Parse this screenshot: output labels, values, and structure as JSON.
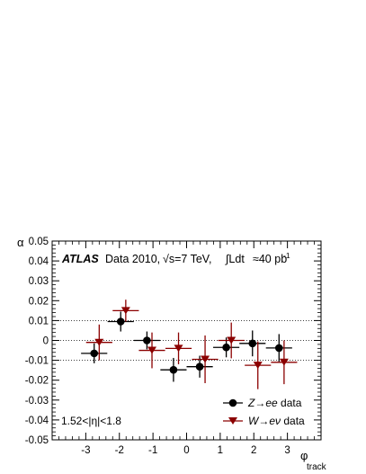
{
  "chart_data": {
    "type": "scatter",
    "xlabel": "φ",
    "xlabel_sub": "track",
    "ylabel": "α",
    "xlim": [
      -4,
      4
    ],
    "ylim": [
      -0.05,
      0.05
    ],
    "x_ticks": [
      -3,
      -2,
      -1,
      0,
      1,
      2,
      3
    ],
    "x_tick_labels": [
      "-3",
      "-2",
      "-1",
      "0",
      "1",
      "2",
      "3"
    ],
    "y_ticks": [
      -0.05,
      -0.04,
      -0.03,
      -0.02,
      -0.01,
      0,
      0.01,
      0.02,
      0.03,
      0.04,
      0.05
    ],
    "y_tick_labels": [
      "-0.05",
      "-0.04",
      "-0.03",
      "-0.02",
      "-0.01",
      "0",
      "0.01",
      "0.02",
      "0.03",
      "0.04",
      "0.05"
    ],
    "reference_lines": [
      {
        "y": 0.01,
        "style": "dotted"
      },
      {
        "y": 0,
        "style": "dotted"
      },
      {
        "y": -0.01,
        "style": "dotted"
      }
    ],
    "annotations": {
      "atlas": "ATLAS",
      "data_year": "Data 2010,",
      "sqrt_s": "√s=7 TeV,",
      "lumi_prefix": "∫Ldt",
      "lumi_value": "≈40 pb",
      "lumi_exp": "-1",
      "eta_range": "1.52<|η|<1.8"
    },
    "legend_placement": "bottom-right",
    "grid": false,
    "series": [
      {
        "name": "Z→ee data",
        "legend_parts": [
          "Z",
          "→",
          "ee",
          " data"
        ],
        "marker": "circle",
        "color": "#000000",
        "x": [
          -2.75,
          -1.96,
          -1.18,
          -0.39,
          0.39,
          1.18,
          1.96,
          2.75
        ],
        "y": [
          -0.0065,
          0.0095,
          0.0,
          -0.0148,
          -0.0132,
          -0.0035,
          -0.0015,
          -0.0038
        ],
        "xerr": [
          0.39,
          0.39,
          0.39,
          0.39,
          0.39,
          0.39,
          0.39,
          0.39
        ],
        "yerr": [
          0.005,
          0.005,
          0.0045,
          0.006,
          0.0055,
          0.005,
          0.0065,
          0.007
        ]
      },
      {
        "name": "W→eν data",
        "legend_parts": [
          "W",
          "→",
          "eν",
          " data"
        ],
        "marker": "triangle-down",
        "color": "#8b0000",
        "x": [
          -2.6,
          -1.81,
          -1.03,
          -0.24,
          0.55,
          1.33,
          2.12,
          2.9
        ],
        "y": [
          -0.001,
          0.015,
          -0.005,
          -0.004,
          -0.0095,
          0.0,
          -0.0125,
          -0.011
        ],
        "xerr": [
          0.39,
          0.39,
          0.39,
          0.39,
          0.39,
          0.39,
          0.39,
          0.39
        ],
        "yerr": [
          0.009,
          0.0055,
          0.009,
          0.008,
          0.012,
          0.009,
          0.012,
          0.011
        ]
      }
    ]
  }
}
